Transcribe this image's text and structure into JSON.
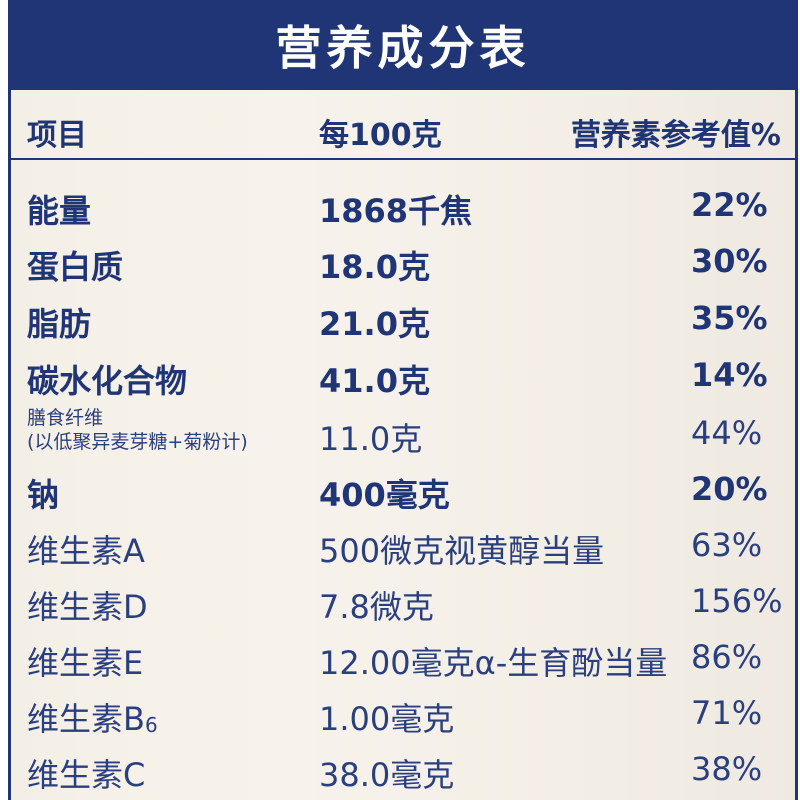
{
  "title": "营养成分表",
  "header": {
    "item": "项目",
    "per100": "每100克",
    "nrv": "营养素参考值%"
  },
  "rows": [
    {
      "name": "能量",
      "amount": "1868千焦",
      "nrv": "22%"
    },
    {
      "name": "蛋白质",
      "amount": "18.0克",
      "nrv": "30%"
    },
    {
      "name": "脂肪",
      "amount": "21.0克",
      "nrv": "35%"
    },
    {
      "name": "碳水化合物",
      "amount": "41.0克",
      "nrv": "14%"
    },
    {
      "name": "膳食纤维",
      "name_note": "(以低聚异麦芽糖+菊粉计)",
      "amount": "11.0克",
      "nrv": "44%"
    },
    {
      "name": "钠",
      "amount": "400毫克",
      "nrv": "20%"
    },
    {
      "name": "维生素A",
      "amount": "500微克视黄醇当量",
      "nrv": "63%"
    },
    {
      "name": "维生素D",
      "amount": "7.8微克",
      "nrv": "156%"
    },
    {
      "name": "维生素E",
      "amount": "12.00毫克α-生育酚当量",
      "nrv": "86%"
    },
    {
      "name": "维生素B",
      "name_sub": "6",
      "amount": "1.00毫克",
      "nrv": "71%"
    },
    {
      "name": "维生素C",
      "amount": "38.0毫克",
      "nrv": "38%"
    }
  ],
  "colors": {
    "navy": "#1f3575",
    "background": "#f5f0e8"
  }
}
